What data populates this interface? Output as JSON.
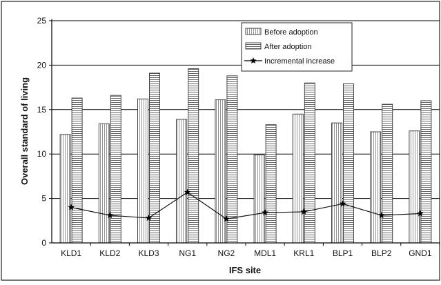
{
  "chart_data": {
    "type": "bar",
    "xlabel": "IFS site",
    "ylabel": "Overall standard of living",
    "categories": [
      "KLD1",
      "KLD2",
      "KLD3",
      "NG1",
      "NG2",
      "MDL1",
      "KRL1",
      "BLP1",
      "BLP2",
      "GND1"
    ],
    "ylim": [
      0,
      25
    ],
    "yticks": [
      0,
      5,
      10,
      15,
      20,
      25
    ],
    "grid": true,
    "legend_position": "top-right",
    "series": [
      {
        "name": "Before adoption",
        "kind": "bar",
        "pattern": "vertical-lines",
        "values": [
          12.2,
          13.4,
          16.2,
          13.9,
          16.1,
          9.9,
          14.5,
          13.5,
          12.5,
          12.6
        ]
      },
      {
        "name": "After adoption",
        "kind": "bar",
        "pattern": "horizontal-lines",
        "values": [
          16.3,
          16.6,
          19.1,
          19.6,
          18.8,
          13.3,
          18.0,
          17.9,
          15.6,
          16.0
        ]
      },
      {
        "name": "Incremental increase",
        "kind": "line",
        "marker": "star",
        "values": [
          4.0,
          3.1,
          2.8,
          5.7,
          2.7,
          3.4,
          3.5,
          4.4,
          3.1,
          3.3
        ]
      }
    ],
    "colors": {
      "bar_fill": "#ffffff",
      "bar_stroke": "#333333",
      "line": "#111111",
      "grid": "#000000",
      "frame": "#222222"
    }
  }
}
